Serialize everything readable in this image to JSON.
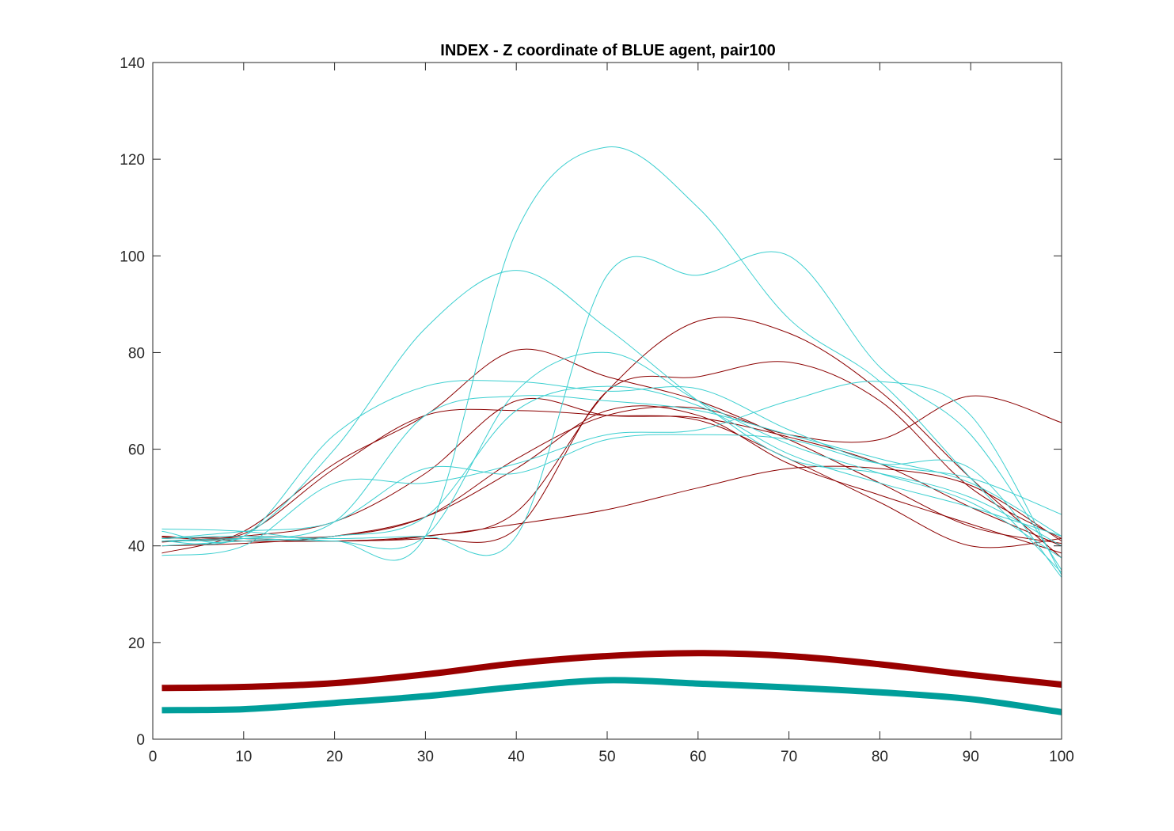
{
  "chart_data": {
    "type": "line",
    "title": "INDEX - Z coordinate of BLUE agent, pair100",
    "xlabel": "",
    "ylabel": "",
    "xlim": [
      0,
      100
    ],
    "ylim": [
      0,
      140
    ],
    "xticks": [
      0,
      10,
      20,
      30,
      40,
      50,
      60,
      70,
      80,
      90,
      100
    ],
    "yticks": [
      0,
      20,
      40,
      60,
      80,
      100,
      120,
      140
    ],
    "grid": false,
    "colors": {
      "thin_dark_red": "#8b0000",
      "thin_cyan": "#3ccfd0",
      "thick_dark_red": "#990000",
      "thick_teal": "#009e9a"
    },
    "series": [
      {
        "group": "thick_dark_red",
        "x": [
          1,
          10,
          20,
          30,
          40,
          50,
          60,
          70,
          80,
          90,
          100
        ],
        "y": [
          10.6,
          10.8,
          11.6,
          13.4,
          15.7,
          17.2,
          17.8,
          17.2,
          15.5,
          13.3,
          11.3
        ]
      },
      {
        "group": "thick_teal",
        "x": [
          1,
          10,
          20,
          30,
          40,
          50,
          60,
          70,
          80,
          90,
          100
        ],
        "y": [
          6.0,
          6.2,
          7.5,
          8.9,
          10.8,
          12.2,
          11.5,
          10.7,
          9.7,
          8.3,
          5.6
        ]
      },
      {
        "group": "thin_dark_red",
        "x": [
          1,
          10,
          20,
          30,
          40,
          50,
          60,
          70,
          80,
          90,
          100
        ],
        "y": [
          41.8,
          41.5,
          41.0,
          42.0,
          44.5,
          47.5,
          52.0,
          56.0,
          56.0,
          52.5,
          41.0
        ]
      },
      {
        "group": "thin_dark_red",
        "x": [
          1,
          10,
          20,
          30,
          40,
          50,
          60,
          70,
          80,
          90,
          100
        ],
        "y": [
          41.8,
          41.0,
          41.0,
          41.5,
          43.5,
          72.0,
          75.0,
          78.0,
          70.0,
          52.0,
          41.5
        ]
      },
      {
        "group": "thin_dark_red",
        "x": [
          1,
          10,
          20,
          30,
          40,
          50,
          60,
          70,
          80,
          90,
          100
        ],
        "y": [
          40.8,
          41.5,
          41.0,
          42.0,
          47.0,
          72.0,
          86.5,
          84.0,
          72.0,
          54.0,
          37.5
        ]
      },
      {
        "group": "thin_dark_red",
        "x": [
          1,
          10,
          20,
          30,
          40,
          50,
          60,
          70,
          80,
          90,
          100
        ],
        "y": [
          41.5,
          42.0,
          42.0,
          46.0,
          58.0,
          67.0,
          68.5,
          63.0,
          62.0,
          71.0,
          65.5
        ]
      },
      {
        "group": "thin_dark_red",
        "x": [
          1,
          10,
          20,
          30,
          40,
          50,
          60,
          70,
          80,
          90,
          100
        ],
        "y": [
          41.0,
          42.0,
          45.0,
          55.0,
          70.0,
          67.0,
          66.5,
          62.5,
          57.0,
          48.0,
          40.0
        ]
      },
      {
        "group": "thin_dark_red",
        "x": [
          1,
          10,
          20,
          30,
          40,
          50,
          60,
          70,
          80,
          90,
          100
        ],
        "y": [
          42.0,
          42.5,
          56.0,
          67.0,
          68.0,
          67.0,
          66.0,
          58.0,
          49.0,
          40.0,
          41.5
        ]
      },
      {
        "group": "thin_dark_red",
        "x": [
          1,
          10,
          20,
          30,
          40,
          50,
          60,
          70,
          80,
          90,
          100
        ],
        "y": [
          38.5,
          43.0,
          57.0,
          67.0,
          80.5,
          75.0,
          70.0,
          62.0,
          53.0,
          44.0,
          40.5
        ]
      },
      {
        "group": "thin_dark_red",
        "x": [
          1,
          10,
          20,
          30,
          40,
          50,
          60,
          70,
          80,
          90,
          100
        ],
        "y": [
          40.0,
          40.5,
          42.0,
          46.0,
          56.0,
          68.0,
          67.0,
          57.0,
          50.5,
          44.5,
          38.5
        ]
      },
      {
        "group": "thin_cyan",
        "x": [
          1,
          10,
          20,
          30,
          40,
          50,
          60,
          70,
          80,
          90,
          100
        ],
        "y": [
          41.0,
          42.0,
          60.0,
          85.0,
          97.0,
          85.0,
          70.0,
          58.0,
          55.0,
          50.0,
          40.0
        ]
      },
      {
        "group": "thin_cyan",
        "x": [
          1,
          10,
          20,
          30,
          40,
          50,
          60,
          70,
          80,
          90,
          100
        ],
        "y": [
          41.0,
          41.5,
          41.0,
          42.0,
          105.0,
          122.5,
          110.0,
          87.0,
          74.0,
          54.0,
          34.5
        ]
      },
      {
        "group": "thin_cyan",
        "x": [
          1,
          10,
          20,
          30,
          40,
          50,
          60,
          70,
          80,
          90,
          100
        ],
        "y": [
          41.5,
          42.0,
          41.5,
          42.0,
          42.0,
          96.0,
          96.0,
          100.0,
          77.0,
          63.0,
          35.0
        ]
      },
      {
        "group": "thin_cyan",
        "x": [
          1,
          10,
          20,
          30,
          40,
          50,
          60,
          70,
          80,
          90,
          100
        ],
        "y": [
          43.5,
          43.0,
          41.0,
          42.0,
          72.0,
          80.0,
          70.0,
          61.0,
          55.0,
          49.0,
          37.5
        ]
      },
      {
        "group": "thin_cyan",
        "x": [
          1,
          10,
          20,
          30,
          40,
          50,
          60,
          70,
          80,
          90,
          100
        ],
        "y": [
          43.0,
          42.0,
          63.0,
          73.0,
          74.0,
          72.0,
          72.5,
          64.0,
          57.0,
          54.0,
          46.5
        ]
      },
      {
        "group": "thin_cyan",
        "x": [
          1,
          10,
          20,
          30,
          40,
          50,
          60,
          70,
          80,
          90,
          100
        ],
        "y": [
          38.0,
          40.0,
          53.0,
          53.0,
          57.0,
          63.0,
          64.0,
          70.0,
          74.0,
          67.0,
          34.0
        ]
      },
      {
        "group": "thin_cyan",
        "x": [
          1,
          10,
          20,
          30,
          40,
          50,
          60,
          70,
          80,
          90,
          100
        ],
        "y": [
          41.5,
          43.0,
          45.0,
          56.0,
          55.0,
          62.0,
          63.0,
          62.0,
          57.0,
          56.0,
          33.5
        ]
      },
      {
        "group": "thin_cyan",
        "x": [
          1,
          10,
          20,
          30,
          40,
          50,
          60,
          70,
          80,
          90,
          100
        ],
        "y": [
          41.0,
          41.5,
          45.0,
          67.0,
          71.0,
          70.0,
          68.0,
          63.0,
          58.0,
          53.0,
          42.0
        ]
      },
      {
        "group": "thin_cyan",
        "x": [
          1,
          10,
          20,
          30,
          40,
          50,
          60,
          70,
          80,
          90,
          100
        ],
        "y": [
          40.0,
          41.0,
          42.0,
          46.0,
          68.0,
          73.0,
          69.0,
          59.0,
          53.0,
          48.0,
          42.0
        ]
      }
    ]
  }
}
